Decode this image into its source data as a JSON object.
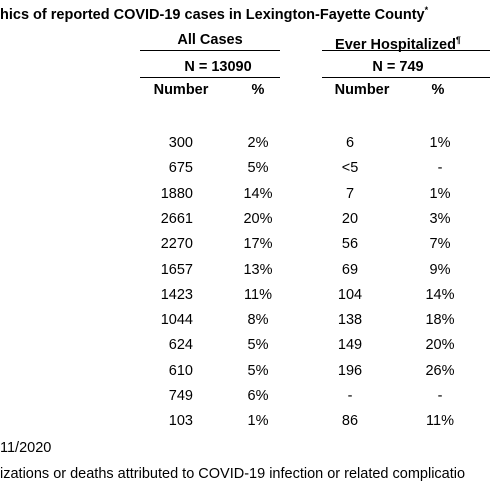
{
  "title": {
    "text": "hics of reported COVID-19 cases in Lexington-Fayette County",
    "mark": "*"
  },
  "groups": [
    {
      "label": "All Cases",
      "n": "N = 13090"
    },
    {
      "label": "Ever Hospitalized",
      "mark": "¶",
      "n": "N = 749"
    }
  ],
  "columns": [
    "Number",
    "%",
    "Number",
    "%"
  ],
  "rows": [
    [
      "300",
      "2%",
      "6",
      "1%"
    ],
    [
      "675",
      "5%",
      "<5",
      "-"
    ],
    [
      "1880",
      "14%",
      "7",
      "1%"
    ],
    [
      "2661",
      "20%",
      "20",
      "3%"
    ],
    [
      "2270",
      "17%",
      "56",
      "7%"
    ],
    [
      "1657",
      "13%",
      "69",
      "9%"
    ],
    [
      "1423",
      "11%",
      "104",
      "14%"
    ],
    [
      "1044",
      "8%",
      "138",
      "18%"
    ],
    [
      "624",
      "5%",
      "149",
      "20%"
    ],
    [
      "610",
      "5%",
      "196",
      "26%"
    ],
    [
      "749",
      "6%",
      "-",
      "-"
    ],
    [
      "103",
      "1%",
      "86",
      "11%"
    ]
  ],
  "footnotes": [
    "11/2020",
    "izations or deaths attributed to COVID-19 infection or related complicatio"
  ]
}
